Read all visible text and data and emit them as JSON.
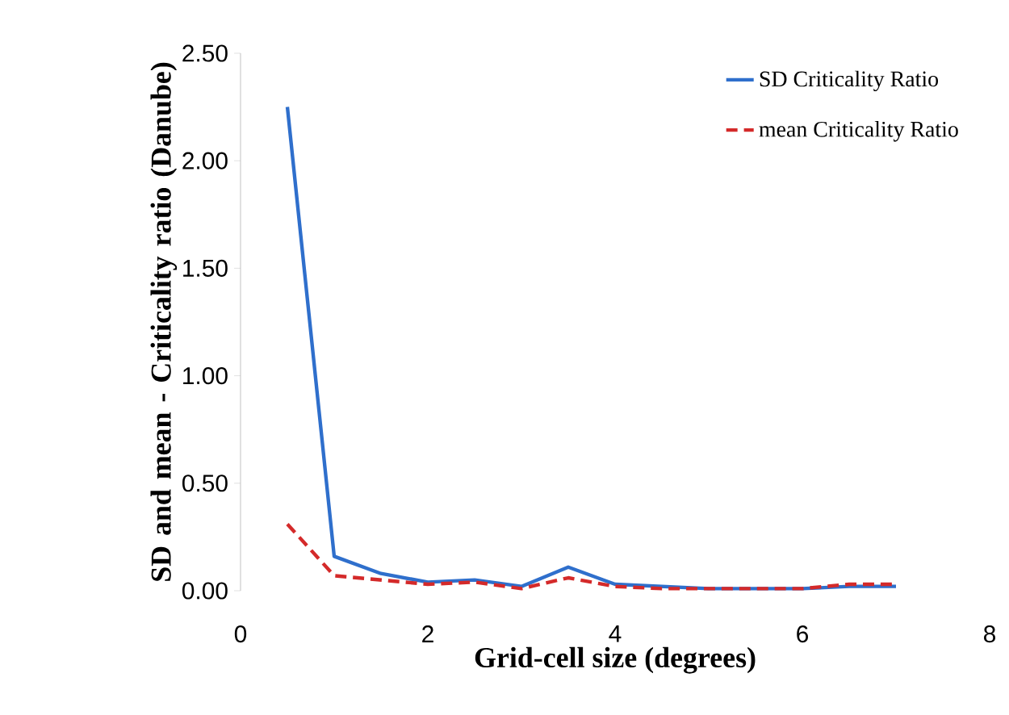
{
  "chart_data": {
    "type": "line",
    "xlabel": "Grid-cell size (degrees)",
    "ylabel": "SD and mean - Criticality ratio (Danube)",
    "x": [
      0.5,
      1,
      1.5,
      2,
      2.5,
      3,
      3.5,
      4,
      4.5,
      5,
      5.5,
      6,
      6.5,
      7
    ],
    "series": [
      {
        "name": "SD Criticality Ratio",
        "color": "#2f6fcc",
        "line_style": "solid",
        "values": [
          2.25,
          0.16,
          0.08,
          0.04,
          0.05,
          0.02,
          0.11,
          0.03,
          0.02,
          0.01,
          0.01,
          0.01,
          0.02,
          0.02
        ]
      },
      {
        "name": "mean Criticality Ratio",
        "color": "#d42a2a",
        "line_style": "dashed",
        "values": [
          0.31,
          0.07,
          0.05,
          0.03,
          0.04,
          0.01,
          0.06,
          0.02,
          0.01,
          0.01,
          0.01,
          0.01,
          0.03,
          0.03
        ]
      }
    ],
    "xlim": [
      0,
      8
    ],
    "xticks": [
      0,
      2,
      4,
      6,
      8
    ],
    "ylim": [
      0,
      2.5
    ],
    "yticks": [
      {
        "value": 0,
        "label": "0.00"
      },
      {
        "value": 0.5,
        "label": "0.50"
      },
      {
        "value": 1,
        "label": "1.00"
      },
      {
        "value": 1.5,
        "label": "1.50"
      },
      {
        "value": 2,
        "label": "2.00"
      },
      {
        "value": 2.5,
        "label": "2.50"
      }
    ],
    "grid": false,
    "legend": "top right",
    "marker": "none"
  }
}
